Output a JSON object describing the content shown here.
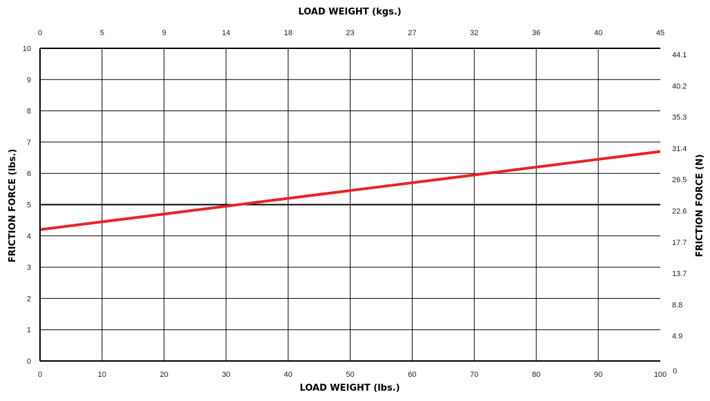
{
  "chart_data": {
    "type": "line",
    "title": "",
    "xlabel": "LOAD WEIGHT (lbs.)",
    "x2label": "LOAD WEIGHT (kgs.)",
    "ylabel": "FRICTION FORCE (lbs.)",
    "y2label": "FRICTION FORCE (N)",
    "xlim": [
      0,
      100
    ],
    "ylim": [
      0,
      10
    ],
    "x_ticks": [
      "0",
      "10",
      "20",
      "30",
      "40",
      "50",
      "60",
      "70",
      "80",
      "90",
      "100"
    ],
    "x2_ticks": [
      "0",
      "5",
      "9",
      "14",
      "18",
      "23",
      "27",
      "32",
      "36",
      "40",
      "45"
    ],
    "y_ticks": [
      "0",
      "1",
      "2",
      "3",
      "4",
      "5",
      "6",
      "7",
      "8",
      "9",
      "10"
    ],
    "y2_ticks": [
      "0",
      "4.9",
      "8.8",
      "13.7",
      "17.7",
      "22.6",
      "26.5",
      "31.4",
      "35.3",
      "40.2",
      "44.1"
    ],
    "grid": true,
    "series": [
      {
        "x": [
          0,
          10,
          20,
          30,
          40,
          50,
          60,
          70,
          80,
          90,
          100
        ],
        "y": [
          4.2,
          4.45,
          4.7,
          4.95,
          5.2,
          5.45,
          5.7,
          5.95,
          6.2,
          6.45,
          6.7
        ],
        "color": "#e8232a"
      }
    ],
    "line_color": "#e8232a",
    "grid_color": "#000000"
  }
}
